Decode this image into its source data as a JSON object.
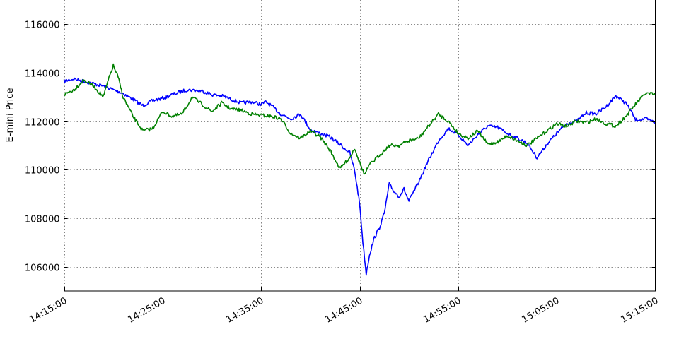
{
  "chart_data": {
    "type": "line",
    "title": "",
    "xlabel": "",
    "ylabel": "E-mini Price",
    "xlim": [
      "14:15:00",
      "15:15:00"
    ],
    "ylim": [
      105000,
      117000
    ],
    "x_ticks": [
      "14:15:00",
      "14:25:00",
      "14:35:00",
      "14:45:00",
      "14:55:00",
      "15:05:00",
      "15:15:00"
    ],
    "y_ticks": [
      106000,
      108000,
      110000,
      112000,
      114000,
      116000
    ],
    "grid": true,
    "legend": "none",
    "series": [
      {
        "color": "#0000ff",
        "points": [
          [
            "14:15:00",
            113650
          ],
          [
            "14:16:00",
            113750
          ],
          [
            "14:17:30",
            113600
          ],
          [
            "14:19:00",
            113450
          ],
          [
            "14:20:00",
            113300
          ],
          [
            "14:21:00",
            113150
          ],
          [
            "14:22:00",
            112900
          ],
          [
            "14:23:00",
            112650
          ],
          [
            "14:24:00",
            112850
          ],
          [
            "14:25:00",
            112950
          ],
          [
            "14:26:00",
            113100
          ],
          [
            "14:27:30",
            113300
          ],
          [
            "14:29:00",
            113250
          ],
          [
            "14:30:00",
            113100
          ],
          [
            "14:31:00",
            113050
          ],
          [
            "14:32:00",
            112900
          ],
          [
            "14:33:00",
            112750
          ],
          [
            "14:34:00",
            112800
          ],
          [
            "14:35:00",
            112700
          ],
          [
            "14:35:30",
            112800
          ],
          [
            "14:36:00",
            112650
          ],
          [
            "14:37:00",
            112300
          ],
          [
            "14:38:00",
            112100
          ],
          [
            "14:39:00",
            112300
          ],
          [
            "14:40:00",
            111650
          ],
          [
            "14:41:00",
            111500
          ],
          [
            "14:42:00",
            111350
          ],
          [
            "14:43:00",
            111050
          ],
          [
            "14:44:00",
            110700
          ],
          [
            "14:44:30",
            109950
          ],
          [
            "14:45:00",
            108600
          ],
          [
            "14:45:20",
            107000
          ],
          [
            "14:45:40",
            105700
          ],
          [
            "14:46:00",
            106500
          ],
          [
            "14:46:30",
            107200
          ],
          [
            "14:47:00",
            107600
          ],
          [
            "14:47:30",
            108200
          ],
          [
            "14:48:00",
            109400
          ],
          [
            "14:48:30",
            109100
          ],
          [
            "14:49:00",
            108900
          ],
          [
            "14:49:30",
            109200
          ],
          [
            "14:50:00",
            108700
          ],
          [
            "14:51:00",
            109500
          ],
          [
            "14:52:00",
            110400
          ],
          [
            "14:53:00",
            111200
          ],
          [
            "14:54:00",
            111700
          ],
          [
            "14:55:00",
            111450
          ],
          [
            "14:56:00",
            111000
          ],
          [
            "14:57:00",
            111450
          ],
          [
            "14:58:00",
            111800
          ],
          [
            "14:59:00",
            111750
          ],
          [
            "15:00:00",
            111500
          ],
          [
            "15:01:00",
            111300
          ],
          [
            "15:02:00",
            111100
          ],
          [
            "15:03:00",
            110500
          ],
          [
            "15:04:00",
            111050
          ],
          [
            "15:05:00",
            111500
          ],
          [
            "15:06:00",
            111900
          ],
          [
            "15:07:00",
            112000
          ],
          [
            "15:08:00",
            112350
          ],
          [
            "15:09:00",
            112300
          ],
          [
            "15:10:00",
            112600
          ],
          [
            "15:11:00",
            113050
          ],
          [
            "15:12:00",
            112750
          ],
          [
            "15:12:30",
            112450
          ],
          [
            "15:13:00",
            112050
          ],
          [
            "15:14:00",
            112100
          ],
          [
            "15:15:00",
            111950
          ]
        ]
      },
      {
        "color": "#008000",
        "points": [
          [
            "14:15:00",
            113100
          ],
          [
            "14:16:00",
            113300
          ],
          [
            "14:17:00",
            113700
          ],
          [
            "14:18:00",
            113450
          ],
          [
            "14:19:00",
            113000
          ],
          [
            "14:19:30",
            113700
          ],
          [
            "14:20:00",
            114300
          ],
          [
            "14:20:30",
            113800
          ],
          [
            "14:21:00",
            113000
          ],
          [
            "14:22:00",
            112200
          ],
          [
            "14:23:00",
            111600
          ],
          [
            "14:24:00",
            111700
          ],
          [
            "14:25:00",
            112400
          ],
          [
            "14:26:00",
            112200
          ],
          [
            "14:27:00",
            112300
          ],
          [
            "14:28:00",
            113000
          ],
          [
            "14:29:00",
            112700
          ],
          [
            "14:30:00",
            112400
          ],
          [
            "14:31:00",
            112750
          ],
          [
            "14:32:00",
            112500
          ],
          [
            "14:33:00",
            112450
          ],
          [
            "14:34:00",
            112300
          ],
          [
            "14:35:00",
            112250
          ],
          [
            "14:36:00",
            112200
          ],
          [
            "14:37:00",
            112100
          ],
          [
            "14:38:00",
            111500
          ],
          [
            "14:39:00",
            111300
          ],
          [
            "14:40:00",
            111600
          ],
          [
            "14:41:00",
            111350
          ],
          [
            "14:42:00",
            110800
          ],
          [
            "14:43:00",
            110050
          ],
          [
            "14:44:00",
            110500
          ],
          [
            "14:44:30",
            110900
          ],
          [
            "14:45:00",
            110300
          ],
          [
            "14:45:30",
            109800
          ],
          [
            "14:46:00",
            110200
          ],
          [
            "14:47:00",
            110600
          ],
          [
            "14:48:00",
            111000
          ],
          [
            "14:49:00",
            111000
          ],
          [
            "14:50:00",
            111200
          ],
          [
            "14:51:00",
            111300
          ],
          [
            "14:52:00",
            111800
          ],
          [
            "14:53:00",
            112300
          ],
          [
            "14:54:00",
            112000
          ],
          [
            "14:55:00",
            111500
          ],
          [
            "14:56:00",
            111300
          ],
          [
            "14:57:00",
            111600
          ],
          [
            "14:58:00",
            111050
          ],
          [
            "14:59:00",
            111150
          ],
          [
            "15:00:00",
            111400
          ],
          [
            "15:01:00",
            111200
          ],
          [
            "15:02:00",
            111000
          ],
          [
            "15:03:00",
            111300
          ],
          [
            "15:04:00",
            111600
          ],
          [
            "15:05:00",
            111900
          ],
          [
            "15:06:00",
            111800
          ],
          [
            "15:07:00",
            112000
          ],
          [
            "15:08:00",
            111950
          ],
          [
            "15:09:00",
            112100
          ],
          [
            "15:10:00",
            111900
          ],
          [
            "15:11:00",
            111800
          ],
          [
            "15:12:00",
            112200
          ],
          [
            "15:13:00",
            112700
          ],
          [
            "15:14:00",
            113150
          ],
          [
            "15:15:00",
            113100
          ]
        ]
      }
    ]
  }
}
